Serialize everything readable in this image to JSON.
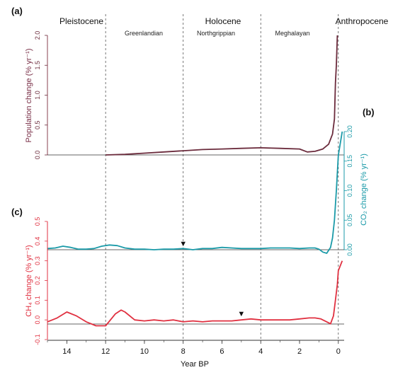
{
  "chart_data": [
    {
      "panel_label": "(a)",
      "type": "line",
      "ylabel": "Population change (% yr⁻¹)",
      "ylim": [
        0,
        2.0
      ],
      "yticks": [
        "0.0",
        "0.5",
        "1.0",
        "1.5",
        "2.0"
      ],
      "series": [
        {
          "color": "#6b2b3c",
          "x": [
            12,
            11,
            10,
            9,
            8,
            7,
            6,
            5,
            4,
            3,
            2,
            1.6,
            1.2,
            0.8,
            0.5,
            0.3,
            0.2,
            0.15,
            0.1,
            0.05
          ],
          "y": [
            0.0,
            0.01,
            0.03,
            0.05,
            0.07,
            0.09,
            0.1,
            0.11,
            0.12,
            0.11,
            0.1,
            0.05,
            0.06,
            0.1,
            0.18,
            0.35,
            0.6,
            1.2,
            1.5,
            2.0
          ]
        }
      ]
    },
    {
      "panel_label": "(b)",
      "type": "line",
      "ylabel": "CO₂ change (% yr⁻¹)",
      "ylim": [
        0,
        0.2
      ],
      "yticks": [
        "0.00",
        "0.05",
        "0.10",
        "0.15",
        "0.20"
      ],
      "marker": {
        "x": 8.0,
        "symbol": "▼"
      },
      "series": [
        {
          "color": "#1a9aa8",
          "x": [
            15,
            14.6,
            14.2,
            13.8,
            13.4,
            13,
            12.6,
            12.2,
            11.8,
            11.4,
            11,
            10.5,
            10,
            9.5,
            9,
            8.5,
            8,
            7.5,
            7,
            6.5,
            6,
            5.5,
            5,
            4.5,
            4,
            3.5,
            3,
            2.5,
            2,
            1.5,
            1.2,
            1.0,
            0.8,
            0.6,
            0.4,
            0.3,
            0.2,
            0.1,
            0.0,
            -0.2
          ],
          "y": [
            0.002,
            0.003,
            0.006,
            0.004,
            0.001,
            0.001,
            0.002,
            0.006,
            0.008,
            0.007,
            0.003,
            0.001,
            0.001,
            0.0,
            0.001,
            0.001,
            0.002,
            0.0,
            0.002,
            0.002,
            0.004,
            0.003,
            0.002,
            0.002,
            0.002,
            0.003,
            0.003,
            0.003,
            0.002,
            0.003,
            0.003,
            0.001,
            -0.004,
            -0.006,
            0.004,
            0.02,
            0.05,
            0.1,
            0.16,
            0.2
          ]
        }
      ]
    },
    {
      "panel_label": "(c)",
      "type": "line",
      "ylabel": "CH₄ change (% yr⁻¹)",
      "ylim": [
        -0.1,
        0.5
      ],
      "yticks": [
        "-0.1",
        "0.0",
        "0.1",
        "0.2",
        "0.3",
        "0.4",
        "0.5"
      ],
      "marker": {
        "x": 5.0,
        "symbol": "▼"
      },
      "series": [
        {
          "color": "#e03040",
          "x": [
            15,
            14.5,
            14,
            13.5,
            13,
            12.5,
            12.0,
            11.5,
            11.2,
            11.0,
            10.5,
            10,
            9.5,
            9,
            8.5,
            8,
            7.5,
            7,
            6.5,
            6,
            5.5,
            5,
            4.5,
            4,
            3.5,
            3,
            2.5,
            2,
            1.5,
            1.2,
            0.9,
            0.6,
            0.4,
            0.25,
            0.15,
            0.05,
            0.0,
            -0.2
          ],
          "y": [
            -0.01,
            0.01,
            0.04,
            0.02,
            -0.01,
            -0.03,
            -0.03,
            0.03,
            0.05,
            0.04,
            0.0,
            -0.005,
            0.0,
            -0.005,
            0.0,
            -0.01,
            -0.005,
            -0.01,
            -0.005,
            -0.005,
            -0.005,
            0.0,
            0.005,
            0.0,
            0.0,
            0.0,
            0.0,
            0.005,
            0.01,
            0.01,
            0.005,
            -0.01,
            -0.02,
            0.02,
            0.1,
            0.18,
            0.25,
            0.3
          ]
        }
      ]
    }
  ],
  "xaxis": {
    "label": "Year BP",
    "xlim": [
      15,
      -0.3
    ],
    "ticks": [
      "14",
      "12",
      "10",
      "8",
      "6",
      "4",
      "2",
      "0"
    ]
  },
  "epochs": [
    {
      "name": "Pleistocene",
      "x_center": 13.6
    },
    {
      "name": "Holocene",
      "x_center": 6.0
    },
    {
      "name": "Anthropocene",
      "x_center": -0.1
    }
  ],
  "stages": [
    {
      "name": "Greenlandian",
      "x_center": 10.0
    },
    {
      "name": "Northgrippian",
      "x_center": 6.1
    },
    {
      "name": "Meghalayan",
      "x_center": 2.1
    }
  ],
  "boundaries_ka": [
    12,
    8,
    4,
    0
  ]
}
